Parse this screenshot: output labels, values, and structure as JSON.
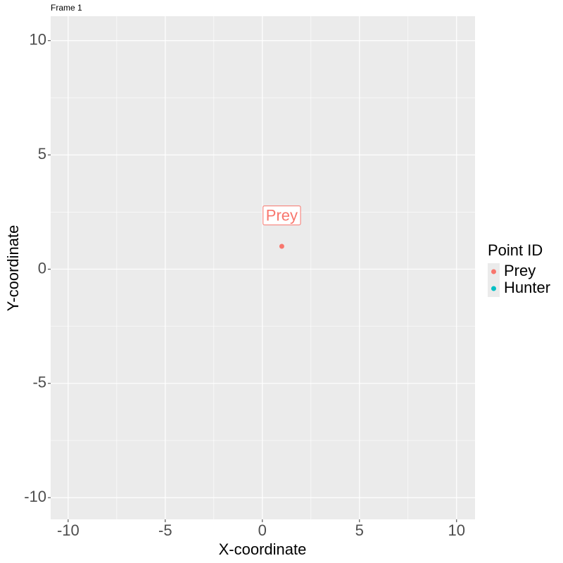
{
  "chart_data": {
    "type": "scatter",
    "title": "Frame 1",
    "x_label": "X-coordinate",
    "y_label": "Y-coordinate",
    "legend_title": "Point ID",
    "series": [
      {
        "name": "Prey",
        "color": "#F8766D",
        "x": [
          1
        ],
        "y": [
          1
        ]
      },
      {
        "name": "Hunter",
        "color": "#00BFC4",
        "x": [],
        "y": []
      }
    ],
    "annotations": [
      {
        "text": "Prey",
        "x": 1,
        "y": 2.3,
        "color": "#F8766D"
      }
    ],
    "xlim": [
      -10.9,
      10.95
    ],
    "ylim": [
      -10.95,
      11.07
    ],
    "xticks": [
      -10,
      -5,
      0,
      5,
      10
    ],
    "yticks": [
      -10,
      -5,
      0,
      5,
      10
    ],
    "grid": true,
    "legend": "right"
  }
}
